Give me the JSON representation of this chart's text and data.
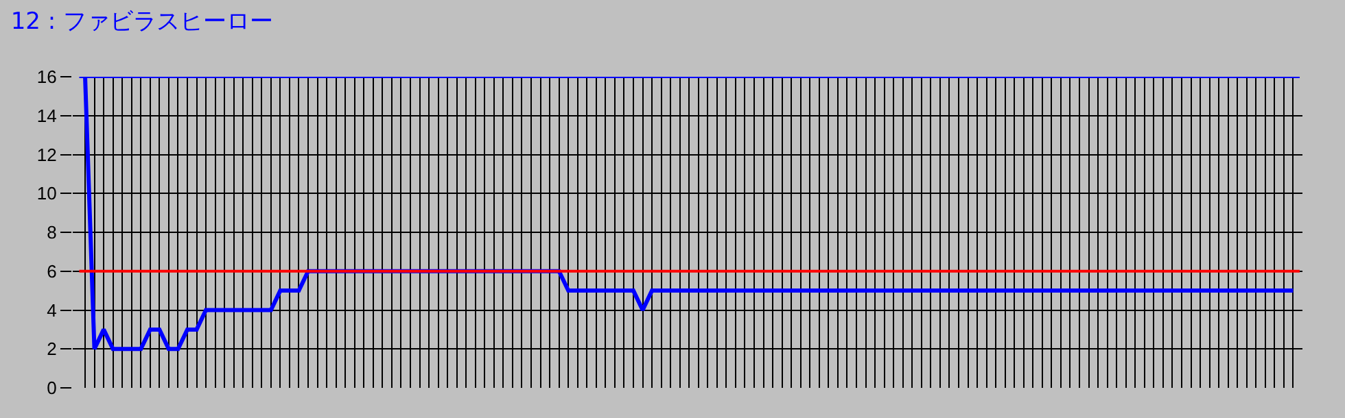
{
  "chart_data": {
    "type": "line",
    "title": "12 : ファビラスヒーロー",
    "categories": [
      null,
      null,
      null,
      null,
      null,
      null,
      null,
      null,
      null,
      null,
      null,
      null,
      null,
      null,
      null,
      null,
      null,
      null,
      null,
      null,
      null,
      null,
      null,
      null,
      null,
      null,
      null,
      null,
      null,
      null,
      null,
      null,
      null,
      null,
      null,
      null,
      null,
      null,
      null,
      null,
      null,
      null,
      null,
      null,
      null,
      null,
      null,
      null,
      null,
      null,
      null,
      null,
      null,
      null,
      null,
      null,
      null,
      null,
      null,
      null,
      null,
      null,
      null,
      null,
      null,
      null,
      null,
      null,
      null,
      null,
      null,
      null,
      null,
      null,
      null,
      null,
      null,
      null,
      null,
      null,
      null,
      null,
      null,
      null,
      null,
      null,
      null,
      null,
      null,
      null,
      null,
      null,
      null,
      null,
      null,
      null,
      null,
      null,
      null,
      null,
      null,
      null,
      null,
      null,
      null,
      null,
      null,
      null,
      null,
      null,
      null,
      null,
      null,
      null,
      null,
      null,
      null,
      null,
      null,
      null,
      null,
      null,
      null,
      null,
      null,
      null,
      null,
      null,
      null,
      null,
      null
    ],
    "series": [
      {
        "color": "#0000ff",
        "values": [
          16,
          2,
          3,
          2,
          2,
          2,
          2,
          3,
          3,
          2,
          2,
          3,
          3,
          4,
          4,
          4,
          4,
          4,
          4,
          4,
          4,
          5,
          5,
          5,
          6,
          6,
          6,
          6,
          6,
          6,
          6,
          6,
          6,
          6,
          6,
          6,
          6,
          6,
          6,
          6,
          6,
          6,
          6,
          6,
          6,
          6,
          6,
          6,
          6,
          6,
          6,
          6,
          5,
          5,
          5,
          5,
          5,
          5,
          5,
          5,
          4,
          5,
          5,
          5,
          5,
          5,
          5,
          5,
          5,
          5,
          5,
          5,
          5,
          5,
          5,
          5,
          5,
          5,
          5,
          5,
          5,
          5,
          5,
          5,
          5,
          5,
          5,
          5,
          5,
          5,
          5,
          5,
          5,
          5,
          5,
          5,
          5,
          5,
          5,
          5,
          5,
          5,
          5,
          5,
          5,
          5,
          5,
          5,
          5,
          5,
          5,
          5,
          5,
          5,
          5,
          5,
          5,
          5,
          5,
          5,
          5,
          5,
          5,
          5,
          5,
          5,
          5,
          5,
          5,
          5,
          5
        ]
      }
    ],
    "ylim": [
      0,
      16
    ],
    "yticks": [
      0,
      2,
      4,
      6,
      8,
      10,
      12,
      14,
      16
    ],
    "grid": true,
    "tick_labels": "y",
    "ref_lines": [
      {
        "axis": "y",
        "value": 6,
        "color": "#ff0000"
      },
      {
        "axis": "y",
        "value": 16,
        "color": "#0000ff"
      }
    ]
  }
}
